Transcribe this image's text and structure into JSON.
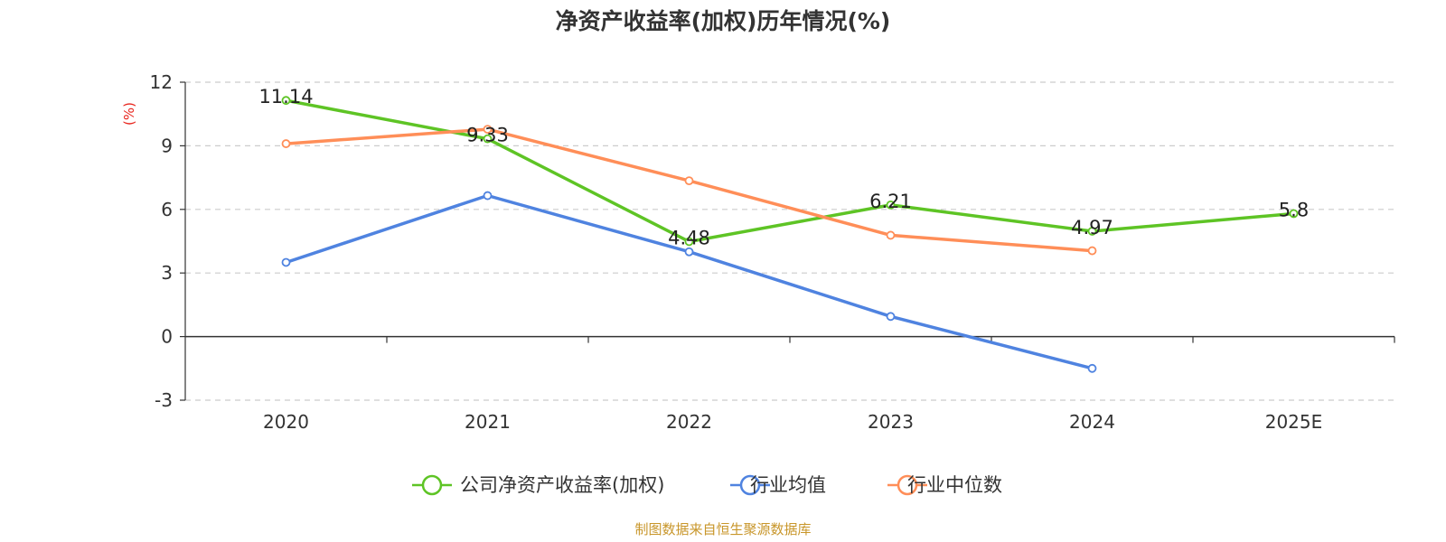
{
  "chart_data": {
    "type": "line",
    "title": "净资产收益率(加权)历年情况(%)",
    "ylabel": "(%)",
    "xlabel": "",
    "categories": [
      "2020",
      "2021",
      "2022",
      "2023",
      "2024",
      "2025E"
    ],
    "ylim": [
      -3,
      12
    ],
    "yticks": [
      "12",
      "9",
      "6",
      "3",
      "0",
      "-3"
    ],
    "ytick_values": [
      12,
      9,
      6,
      3,
      0,
      -3
    ],
    "grid": true,
    "legend_position": "bottom-center",
    "series": [
      {
        "name": "公司净资产收益率(加权)",
        "color": "#5ec425",
        "values": [
          11.14,
          9.33,
          4.48,
          6.21,
          4.97,
          5.8
        ],
        "labels": [
          "11.14",
          "9.33",
          "4.48",
          "6.21",
          "4.97",
          "5.8"
        ]
      },
      {
        "name": "行业均值",
        "color": "#4f83e0",
        "values": [
          3.5,
          6.65,
          4.0,
          0.95,
          -1.5,
          null
        ],
        "labels": null
      },
      {
        "name": "行业中位数",
        "color": "#ff8e58",
        "values": [
          9.1,
          9.78,
          7.35,
          4.78,
          4.05,
          null
        ],
        "labels": null
      }
    ],
    "source": "制图数据来自恒生聚源数据库"
  }
}
